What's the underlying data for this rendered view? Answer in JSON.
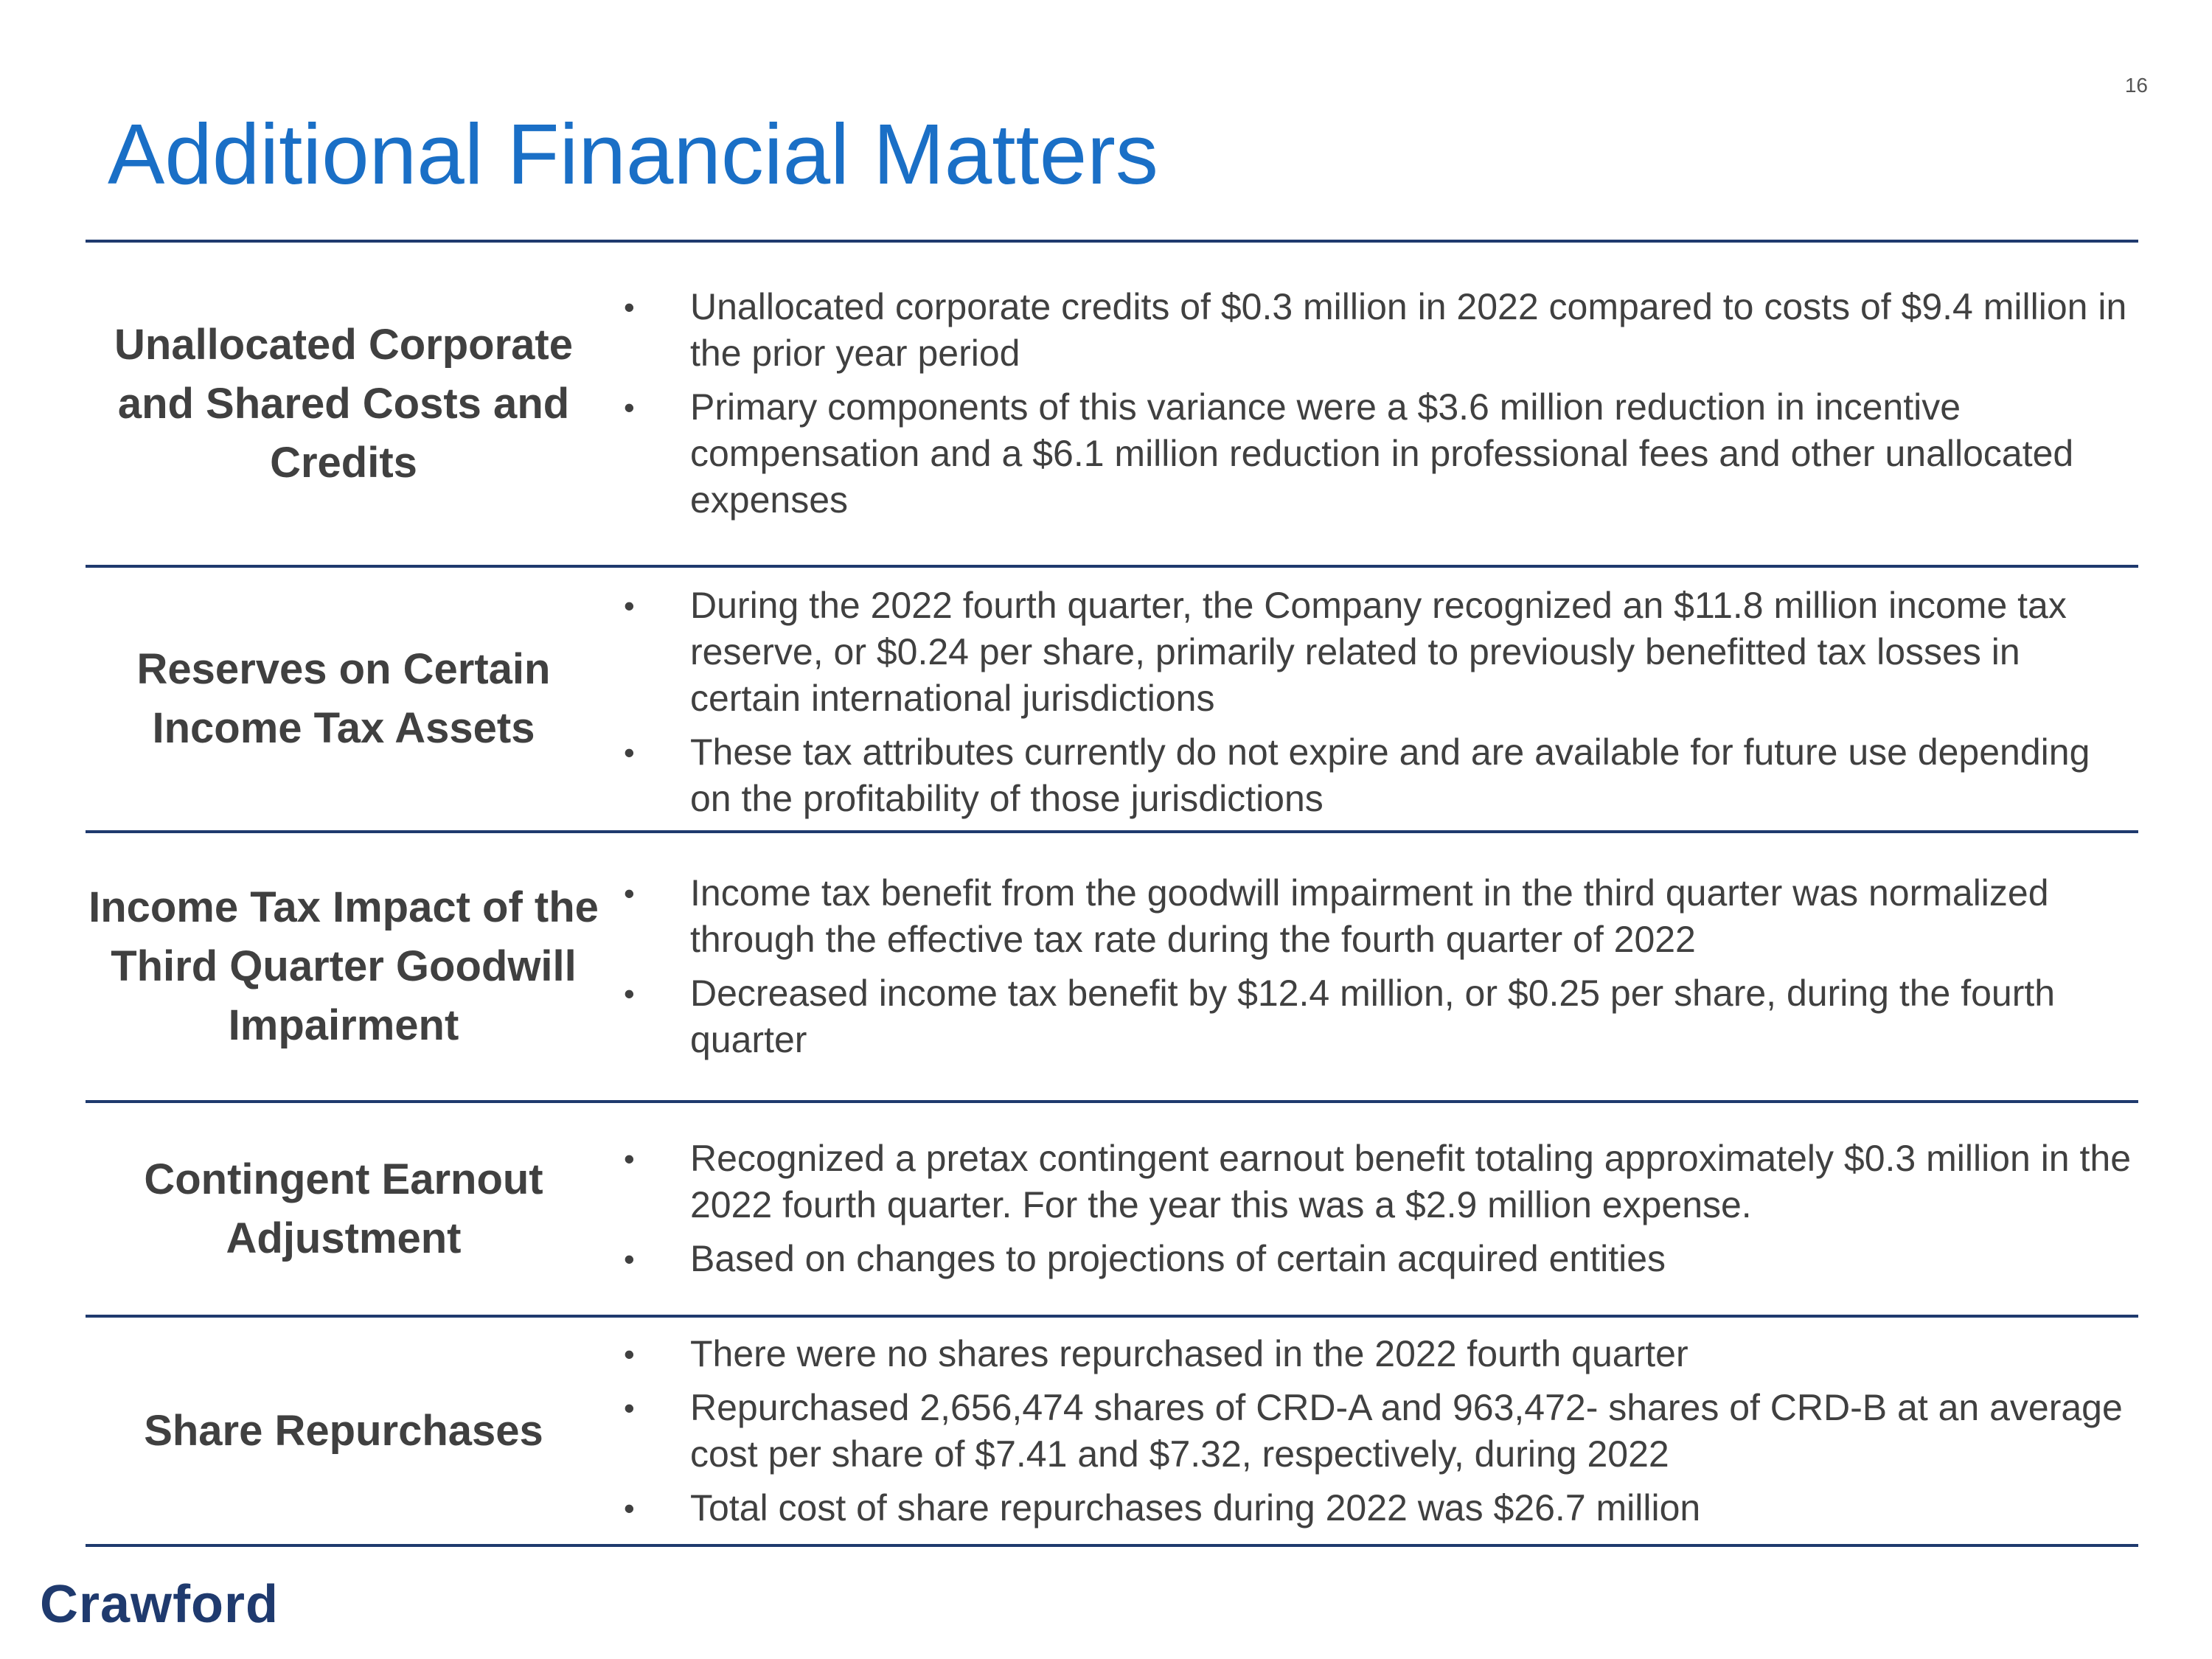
{
  "page_number": "16",
  "title": "Additional Financial Matters",
  "logo_text": "Crawford",
  "colors": {
    "title": "#1a6fc6",
    "rules": "#1f3a6e",
    "logo": "#1f3a6e",
    "body_text": "#404040"
  },
  "sections": [
    {
      "heading": "Unallocated Corporate and Shared Costs and Credits",
      "bullets": [
        "Unallocated corporate credits of $0.3 million in 2022 compared to costs of $9.4 million in the prior year period",
        "Primary components of this variance were a $3.6 million reduction in incentive compensation and a $6.1 million reduction in professional fees and other unallocated expenses"
      ]
    },
    {
      "heading": "Reserves on Certain Income Tax Assets",
      "bullets": [
        "During the 2022 fourth quarter, the Company recognized an $11.8 million income tax reserve, or $0.24 per share, primarily related to previously benefitted tax losses in certain international jurisdictions",
        "These tax attributes currently do not expire and are available for future use depending on the profitability of those jurisdictions"
      ]
    },
    {
      "heading": "Income Tax Impact of the Third Quarter Goodwill Impairment",
      "bullets": [
        "Income tax benefit from the goodwill impairment in the third quarter was normalized through the effective tax rate during the fourth quarter of 2022",
        "Decreased income tax benefit by $12.4 million, or $0.25 per share, during the fourth quarter"
      ]
    },
    {
      "heading": "Contingent Earnout Adjustment",
      "bullets": [
        "Recognized a pretax contingent earnout benefit totaling approximately $0.3 million in the 2022 fourth quarter. For the year this was a $2.9 million expense.",
        "Based on changes to projections of certain acquired entities"
      ]
    },
    {
      "heading": "Share Repurchases",
      "bullets": [
        "There were no shares repurchased in the 2022 fourth quarter",
        "Repurchased 2,656,474  shares of CRD-A and 963,472- shares of CRD-B at an average cost per share of $7.41 and $7.32, respectively, during 2022",
        "Total cost of share repurchases during 2022 was $26.7 million"
      ]
    }
  ]
}
